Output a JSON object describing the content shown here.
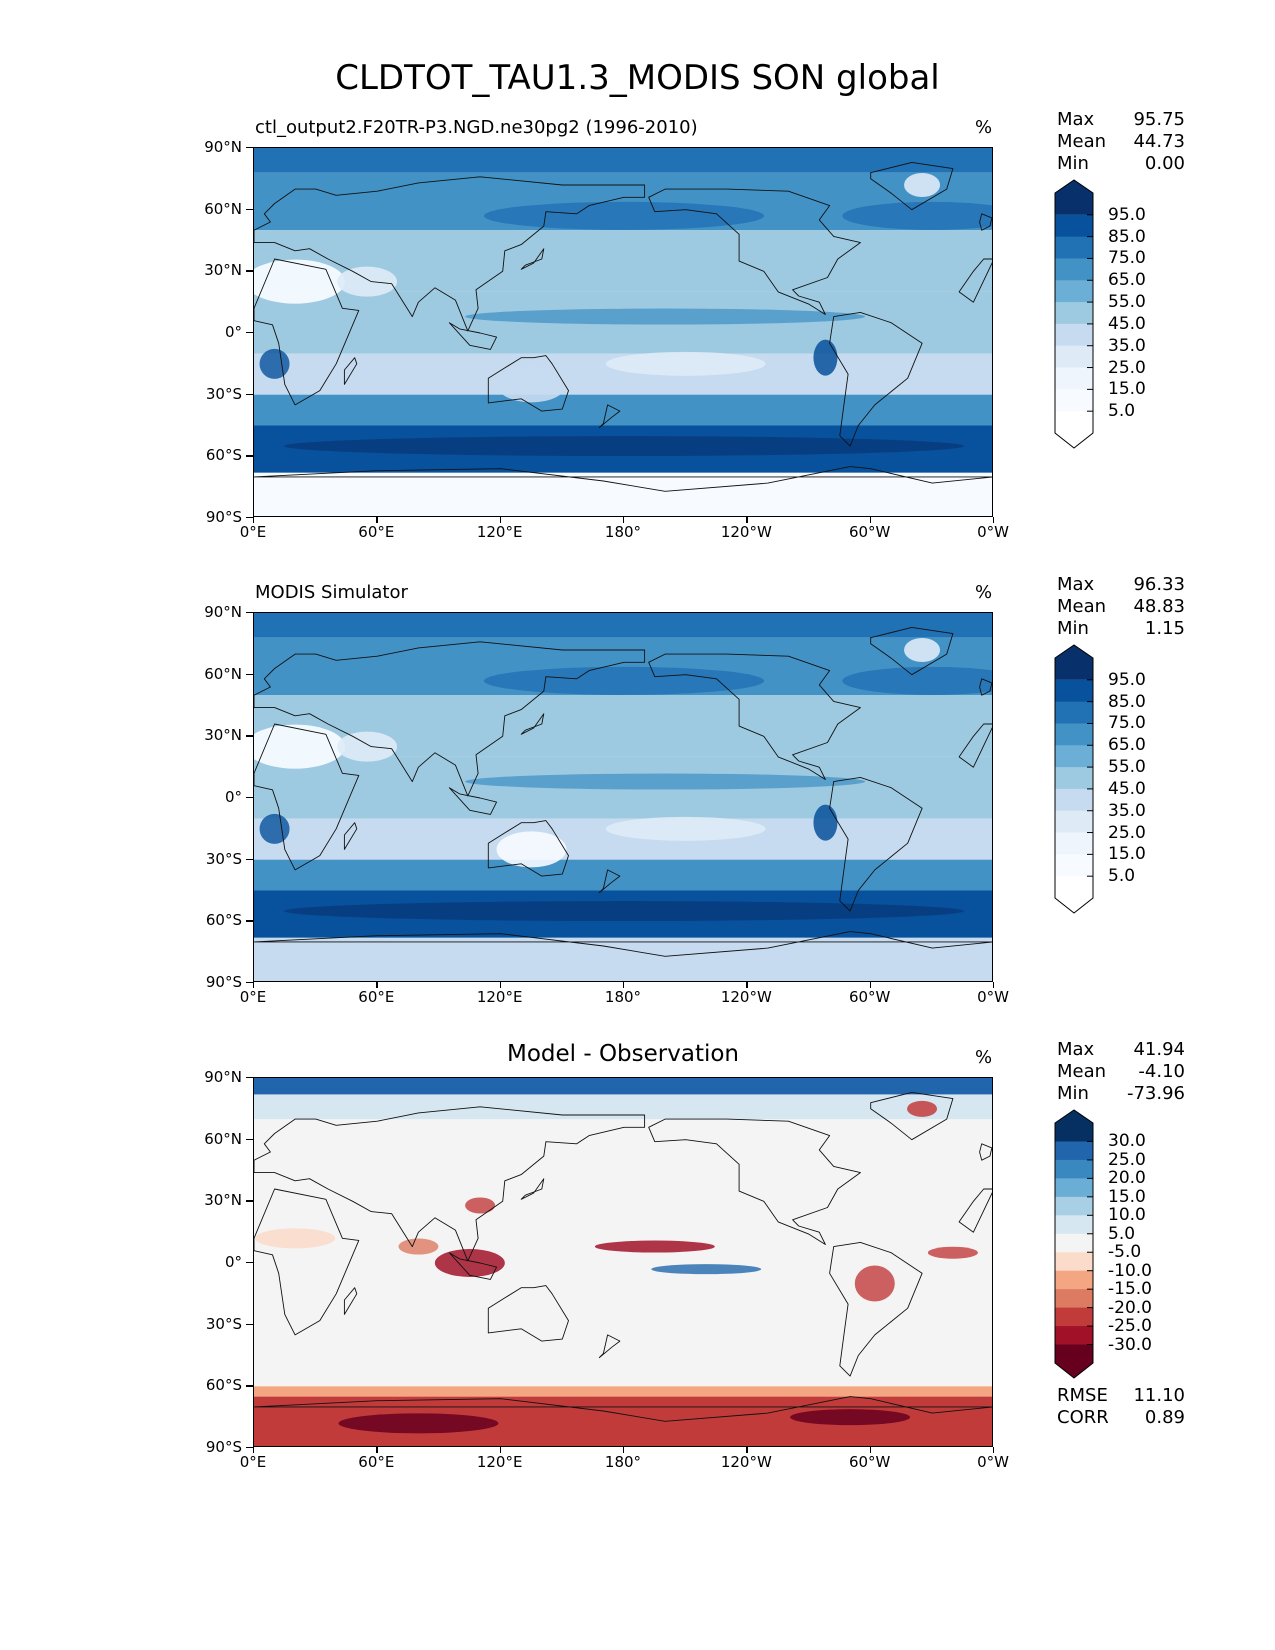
{
  "title": "CLDTOT_TAU1.3_MODIS SON global",
  "map_extent": {
    "lon": [
      0,
      360
    ],
    "lat": [
      -90,
      90
    ]
  },
  "lat_ticks": [
    "90°N",
    "60°N",
    "30°N",
    "0°",
    "30°S",
    "60°S",
    "90°S"
  ],
  "lon_ticks": [
    "0°E",
    "60°E",
    "120°E",
    "180°",
    "120°W",
    "60°W",
    "0°W"
  ],
  "panels": [
    {
      "id": "model",
      "title": "ctl_output2.F20TR-P3.NGD.ne30pg2 (1996-2010)",
      "title_style": "left",
      "units": "%",
      "stats": [
        {
          "label": "Max",
          "value": "95.75"
        },
        {
          "label": "Mean",
          "value": "44.73"
        },
        {
          "label": "Min",
          "value": "0.00"
        }
      ],
      "colorbar": {
        "labels": [
          "95.0",
          "85.0",
          "75.0",
          "65.0",
          "55.0",
          "45.0",
          "35.0",
          "25.0",
          "15.0",
          "5.0"
        ],
        "colors": [
          "#08306b",
          "#08519c",
          "#2171b5",
          "#4292c6",
          "#6baed6",
          "#9ecae1",
          "#c6dbef",
          "#deebf7",
          "#eef5fc",
          "#f7fbff",
          "#ffffff"
        ]
      }
    },
    {
      "id": "obs",
      "title": "MODIS Simulator",
      "title_style": "left",
      "units": "%",
      "stats": [
        {
          "label": "Max",
          "value": "96.33"
        },
        {
          "label": "Mean",
          "value": "48.83"
        },
        {
          "label": "Min",
          "value": "1.15"
        }
      ],
      "colorbar": {
        "labels": [
          "95.0",
          "85.0",
          "75.0",
          "65.0",
          "55.0",
          "45.0",
          "35.0",
          "25.0",
          "15.0",
          "5.0"
        ],
        "colors": [
          "#08306b",
          "#08519c",
          "#2171b5",
          "#4292c6",
          "#6baed6",
          "#9ecae1",
          "#c6dbef",
          "#deebf7",
          "#eef5fc",
          "#f7fbff",
          "#ffffff"
        ]
      }
    },
    {
      "id": "diff",
      "title": "Model - Observation",
      "title_style": "center",
      "units": "%",
      "stats": [
        {
          "label": "Max",
          "value": "41.94"
        },
        {
          "label": "Mean",
          "value": "-4.10"
        },
        {
          "label": "Min",
          "value": "-73.96"
        }
      ],
      "colorbar": {
        "labels": [
          "30.0",
          "25.0",
          "20.0",
          "15.0",
          "10.0",
          "5.0",
          "-5.0",
          "-10.0",
          "-15.0",
          "-20.0",
          "-25.0",
          "-30.0"
        ],
        "colors": [
          "#053061",
          "#2166ac",
          "#3a88c0",
          "#6aaed6",
          "#a9cfe5",
          "#d6e7f1",
          "#f4f4f4",
          "#fbdccb",
          "#f4a582",
          "#dd7a62",
          "#c23b3b",
          "#a11228",
          "#67001f"
        ]
      },
      "footer": [
        {
          "label": "RMSE",
          "value": "11.10"
        },
        {
          "label": "CORR",
          "value": "0.89"
        }
      ]
    }
  ]
}
